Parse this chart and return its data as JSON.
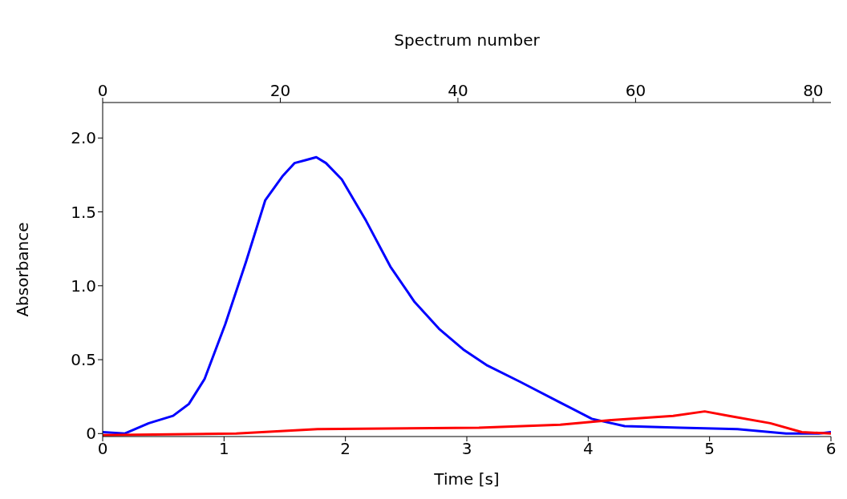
{
  "chart_data": {
    "type": "line",
    "xlabel": "Time [s]",
    "ylabel": "Absorbance",
    "x2label": "Spectrum number",
    "xlim": [
      0,
      6
    ],
    "xticks": [
      0,
      1,
      2,
      3,
      4,
      5,
      6
    ],
    "x2lim": [
      0,
      82
    ],
    "x2ticks": [
      0,
      20,
      40,
      60,
      80
    ],
    "ylim": [
      -0.02,
      2.24
    ],
    "yticks": [
      0,
      {
        "value": 0.5,
        "label": "0.5"
      },
      {
        "value": 1,
        "label": "1.0"
      },
      {
        "value": 1.5,
        "label": "1.5"
      },
      {
        "value": 2,
        "label": "2.0"
      }
    ],
    "grid": false,
    "legend": false,
    "marker": "none",
    "line_style": "solid",
    "series": [
      {
        "color": "#0000ff",
        "x": [
          0,
          0.18,
          0.38,
          0.58,
          0.71,
          0.84,
          1.01,
          1.18,
          1.34,
          1.48,
          1.58,
          1.67,
          1.76,
          1.84,
          1.97,
          2.17,
          2.37,
          2.57,
          2.77,
          2.97,
          3.17,
          3.44,
          3.77,
          4.03,
          4.3,
          4.76,
          5.23,
          5.63,
          5.9,
          6
        ],
        "values": [
          0.01,
          0,
          0.07,
          0.12,
          0.2,
          0.37,
          0.74,
          1.16,
          1.58,
          1.74,
          1.83,
          1.85,
          1.87,
          1.83,
          1.72,
          1.44,
          1.13,
          0.89,
          0.71,
          0.57,
          0.46,
          0.35,
          0.21,
          0.1,
          0.05,
          0.04,
          0.03,
          0,
          0,
          0.01
        ]
      },
      {
        "color": "#ff0000",
        "x": [
          0,
          1.1,
          1.77,
          3.1,
          3.77,
          4.17,
          4.7,
          4.96,
          5.16,
          5.5,
          5.76,
          6
        ],
        "values": [
          -0.01,
          0,
          0.03,
          0.04,
          0.06,
          0.09,
          0.12,
          0.15,
          0.12,
          0.07,
          0.01,
          0
        ]
      }
    ]
  }
}
